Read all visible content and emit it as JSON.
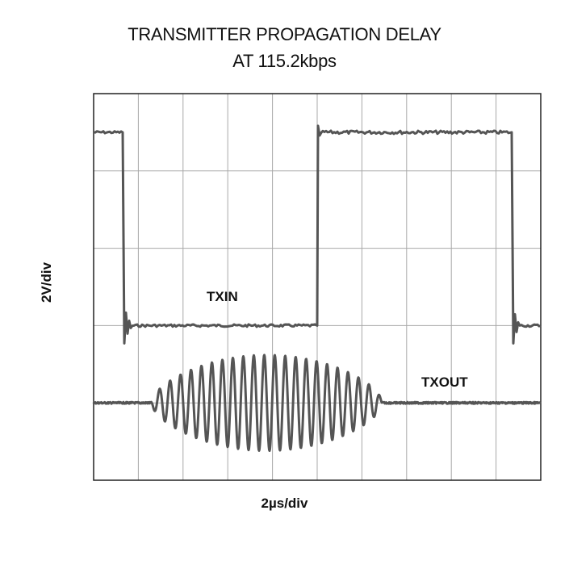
{
  "title_line1": "TRANSMITTER PROPAGATION DELAY",
  "title_line2": "AT 115.2kbps",
  "chart_data": {
    "type": "line",
    "xlabel": "2µs/div",
    "ylabel": "2V/div",
    "x_divisions": 10,
    "y_divisions": 5,
    "grid": true,
    "traces": [
      {
        "name": "TXIN",
        "kind": "square",
        "high_div": 4.5,
        "low_div": 2.0,
        "transitions_div": [
          0.65,
          5.0,
          9.35
        ]
      },
      {
        "name": "TXOUT",
        "kind": "modulated-burst",
        "baseline_div": 1.0,
        "burst_start_div": 1.3,
        "burst_end_div": 6.45,
        "peak_amplitude_div": 0.62,
        "cycles": 22
      }
    ]
  },
  "colors": {
    "trace": "#555555",
    "grid": "#a8a8a8",
    "frame": "#222222"
  }
}
